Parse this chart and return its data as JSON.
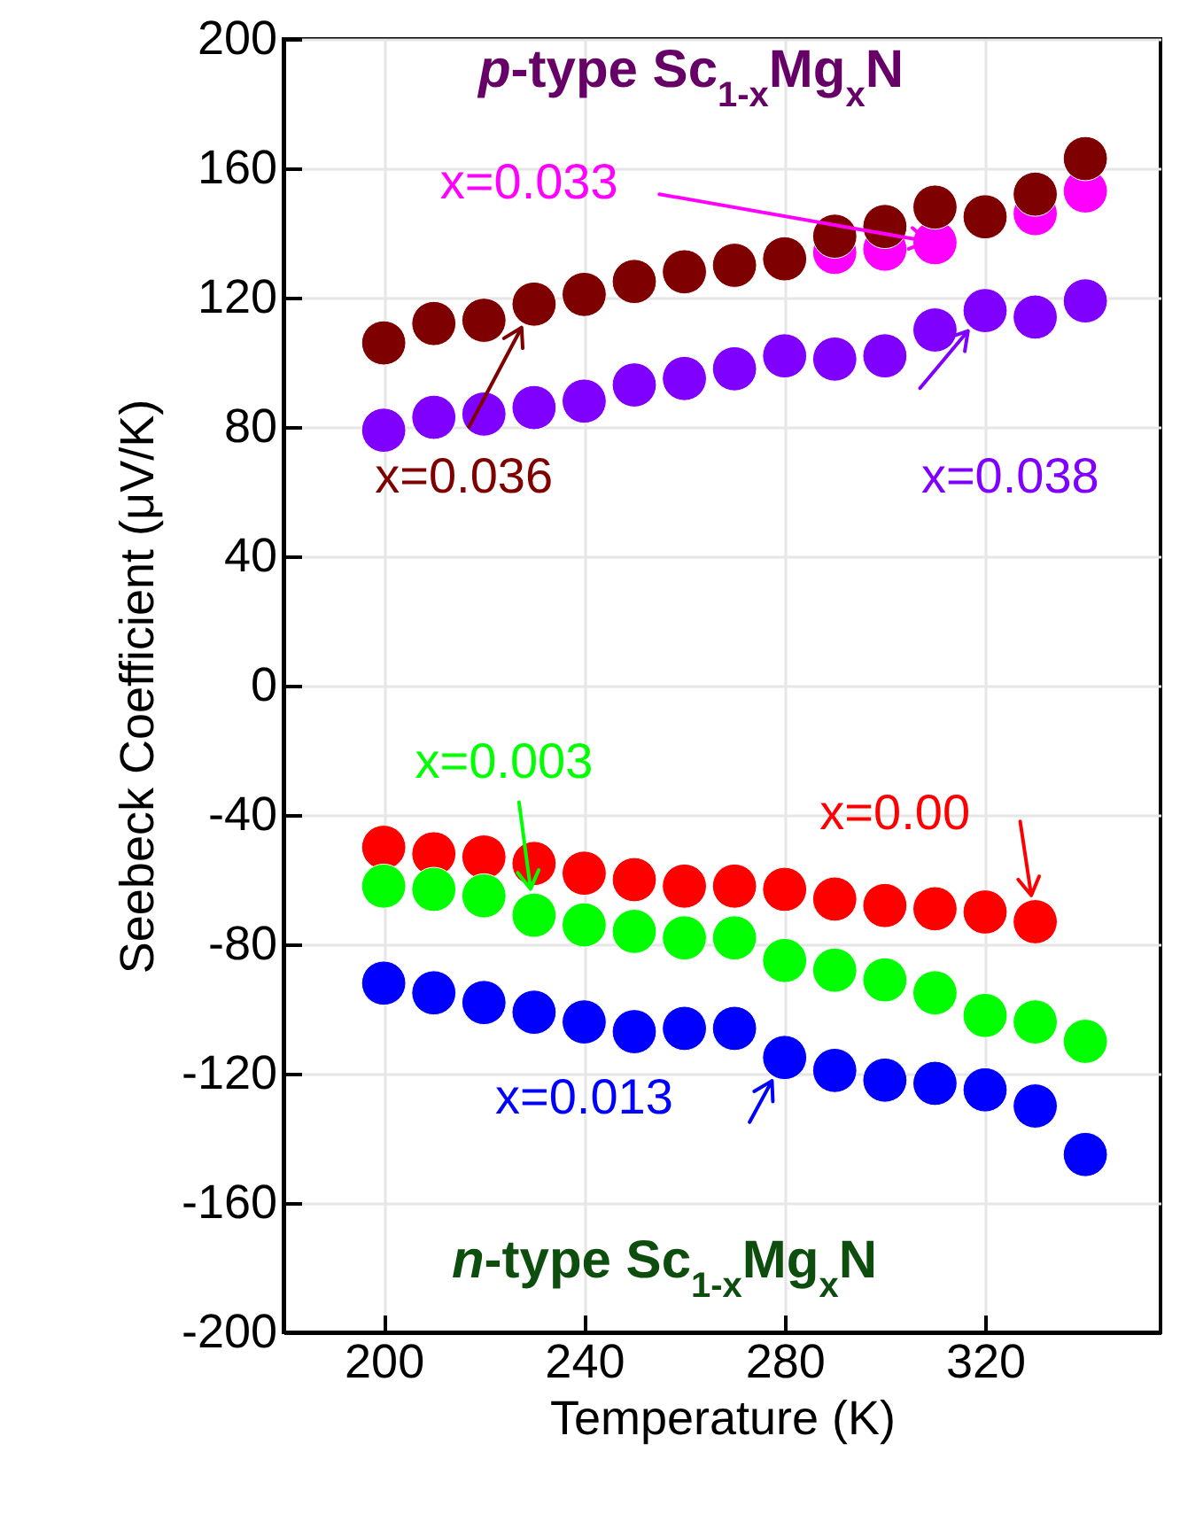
{
  "chart_data": {
    "type": "scatter",
    "xlabel": "Temperature (K)",
    "ylabel": "Seebeck Coefficient (μV/K)",
    "x": [
      200,
      210,
      220,
      230,
      240,
      250,
      260,
      270,
      280,
      290,
      300,
      310,
      320,
      330,
      340
    ],
    "xlim": [
      180,
      355
    ],
    "xticks": [
      200,
      240,
      280,
      320
    ],
    "ylim": [
      -200,
      200
    ],
    "yticks": [
      -200,
      -160,
      -120,
      -80,
      -40,
      0,
      40,
      80,
      120,
      160,
      200
    ],
    "grid": true,
    "marker": "circle",
    "series": [
      {
        "color": "#ff00ff",
        "values": [
          null,
          null,
          null,
          null,
          null,
          null,
          null,
          null,
          null,
          134,
          135,
          137,
          null,
          146,
          153
        ]
      },
      {
        "color": "#7f0000",
        "values": [
          106,
          112,
          113,
          118,
          121,
          125,
          128,
          130,
          132,
          139,
          142,
          148,
          145,
          152,
          163
        ]
      },
      {
        "color": "#8000ff",
        "values": [
          79,
          83,
          84,
          86,
          88,
          93,
          95,
          98,
          102,
          101,
          102,
          110,
          116,
          114,
          119
        ]
      },
      {
        "color": "#ff0000",
        "values": [
          -50,
          -52,
          -53,
          -55,
          -58,
          -60,
          -62,
          -62,
          -63,
          -66,
          -68,
          -69,
          -70,
          -73,
          null
        ]
      },
      {
        "color": "#00ff00",
        "values": [
          -62,
          -63,
          -65,
          -71,
          -74,
          -76,
          -78,
          -78,
          -85,
          -88,
          -91,
          -95,
          -102,
          -104,
          -110
        ]
      },
      {
        "color": "#0000ff",
        "values": [
          -92,
          -95,
          -98,
          -101,
          -104,
          -107,
          -106,
          -106,
          -115,
          -119,
          -122,
          -123,
          -125,
          -130,
          -145
        ]
      }
    ],
    "annotations": [
      "p-type Sc$_{1-x}$Mg$_{x}$N",
      "n-type Sc$_{1-x}$Mg$_{x}$N",
      {
        "text": "x=0.033",
        "x": 310,
        "y": 137
      },
      {
        "text": "x=0.036",
        "x": 230,
        "y": 118
      },
      {
        "text": "x=0.038",
        "x": 320,
        "y": 116
      },
      {
        "text": "x=0.003",
        "x": 230,
        "y": -71
      },
      {
        "text": "x=0.00",
        "x": 330,
        "y": -73
      },
      {
        "text": "x=0.013",
        "x": 280,
        "y": -115
      }
    ]
  }
}
